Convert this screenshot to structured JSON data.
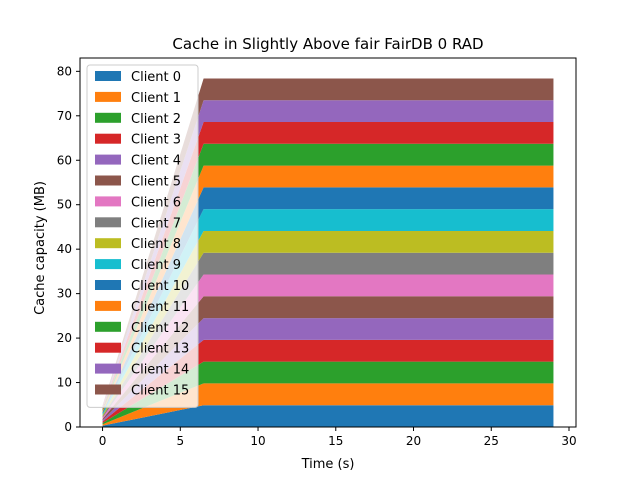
{
  "chart_data": {
    "type": "area",
    "title": "Cache in Slightly Above fair FairDB 0 RAD",
    "xlabel": "Time (s)",
    "ylabel": "Cache capacity (MB)",
    "xlim": [
      -1.45,
      30.45
    ],
    "ylim": [
      0,
      83
    ],
    "xticks": [
      0,
      5,
      10,
      15,
      20,
      25,
      30
    ],
    "yticks": [
      0,
      10,
      20,
      30,
      40,
      50,
      60,
      70,
      80
    ],
    "grid": false,
    "legend_position": "upper-left",
    "x": [
      0,
      6.5,
      29
    ],
    "series": [
      {
        "name": "Client 0",
        "color": "#1f77b4",
        "values": [
          0.3,
          4.9,
          4.9
        ]
      },
      {
        "name": "Client 1",
        "color": "#ff7f0e",
        "values": [
          0.3,
          4.9,
          4.9
        ]
      },
      {
        "name": "Client 2",
        "color": "#2ca02c",
        "values": [
          0.3,
          4.9,
          4.9
        ]
      },
      {
        "name": "Client 3",
        "color": "#d62728",
        "values": [
          0.3,
          4.9,
          4.9
        ]
      },
      {
        "name": "Client 4",
        "color": "#9467bd",
        "values": [
          0.3,
          4.9,
          4.9
        ]
      },
      {
        "name": "Client 5",
        "color": "#8c564b",
        "values": [
          0.3,
          4.9,
          4.9
        ]
      },
      {
        "name": "Client 6",
        "color": "#e377c2",
        "values": [
          0.3,
          4.9,
          4.9
        ]
      },
      {
        "name": "Client 7",
        "color": "#7f7f7f",
        "values": [
          0.3,
          4.9,
          4.9
        ]
      },
      {
        "name": "Client 8",
        "color": "#bcbd22",
        "values": [
          0.3,
          4.9,
          4.9
        ]
      },
      {
        "name": "Client 9",
        "color": "#17becf",
        "values": [
          0.3,
          4.9,
          4.9
        ]
      },
      {
        "name": "Client 10",
        "color": "#1f77b4",
        "values": [
          0.3,
          4.9,
          4.9
        ]
      },
      {
        "name": "Client 11",
        "color": "#ff7f0e",
        "values": [
          0.3,
          4.9,
          4.9
        ]
      },
      {
        "name": "Client 12",
        "color": "#2ca02c",
        "values": [
          0.3,
          4.9,
          4.9
        ]
      },
      {
        "name": "Client 13",
        "color": "#d62728",
        "values": [
          0.3,
          4.9,
          4.9
        ]
      },
      {
        "name": "Client 14",
        "color": "#9467bd",
        "values": [
          0.3,
          4.9,
          4.9
        ]
      },
      {
        "name": "Client 15",
        "color": "#8c564b",
        "values": [
          0.3,
          4.9,
          4.9
        ]
      }
    ]
  }
}
